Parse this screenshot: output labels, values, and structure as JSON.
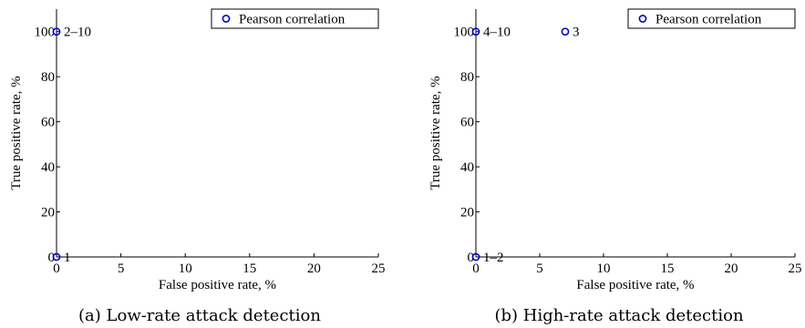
{
  "chart_data": [
    {
      "type": "scatter",
      "caption": "(a) Low-rate attack detection",
      "xlabel": "False positive rate, %",
      "ylabel": "True positive rate, %",
      "xlim": [
        0,
        25
      ],
      "ylim": [
        0,
        110
      ],
      "xticks": [
        0,
        5,
        10,
        15,
        20,
        25
      ],
      "yticks": [
        0,
        20,
        40,
        60,
        80,
        100
      ],
      "grid": false,
      "legend_position": "top-right",
      "series": [
        {
          "name": "Pearson correlation",
          "color": "#0000cc",
          "marker": "circle-open",
          "points": [
            {
              "x": 0,
              "y": 100,
              "label": "2–10"
            },
            {
              "x": 0,
              "y": 0,
              "label": "1"
            }
          ]
        }
      ]
    },
    {
      "type": "scatter",
      "caption": "(b) High-rate attack detection",
      "xlabel": "False positive rate, %",
      "ylabel": "True positive rate, %",
      "xlim": [
        0,
        25
      ],
      "ylim": [
        0,
        110
      ],
      "xticks": [
        0,
        5,
        10,
        15,
        20,
        25
      ],
      "yticks": [
        0,
        20,
        40,
        60,
        80,
        100
      ],
      "grid": false,
      "legend_position": "top-right",
      "series": [
        {
          "name": "Pearson correlation",
          "color": "#0000cc",
          "marker": "circle-open",
          "points": [
            {
              "x": 0,
              "y": 100,
              "label": "4–10"
            },
            {
              "x": 7,
              "y": 100,
              "label": "3"
            },
            {
              "x": 0,
              "y": 0,
              "label": "1–2"
            }
          ]
        }
      ]
    }
  ]
}
